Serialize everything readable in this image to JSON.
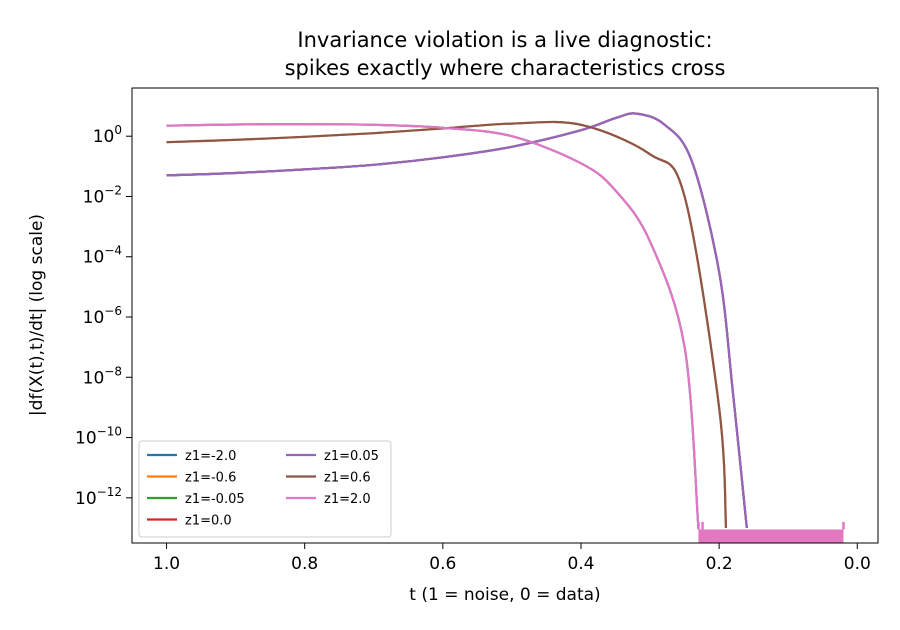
{
  "chart_data": {
    "type": "line",
    "title": "Invariance violation is a live diagnostic:",
    "subtitle": "spikes exactly where characteristics cross",
    "xlabel": "t (1 = noise, 0 = data)",
    "ylabel": "|df(X(t),t)/dt|  (log scale)",
    "xlim": [
      1.05,
      -0.03
    ],
    "ylim_exp": [
      -13.5,
      1.6
    ],
    "yscale": "log",
    "x_inverted": true,
    "grid": false,
    "legend_placement": "lower-left",
    "x_ticks": [
      {
        "value": 1.0,
        "label": "1.0"
      },
      {
        "value": 0.8,
        "label": "0.8"
      },
      {
        "value": 0.6,
        "label": "0.6"
      },
      {
        "value": 0.4,
        "label": "0.4"
      },
      {
        "value": 0.2,
        "label": "0.2"
      },
      {
        "value": 0.0,
        "label": "0.0"
      }
    ],
    "y_ticks": [
      {
        "exp": 0,
        "base": "10",
        "sup": "0"
      },
      {
        "exp": -2,
        "base": "10",
        "sup": "−2"
      },
      {
        "exp": -4,
        "base": "10",
        "sup": "−4"
      },
      {
        "exp": -6,
        "base": "10",
        "sup": "−6"
      },
      {
        "exp": -8,
        "base": "10",
        "sup": "−8"
      },
      {
        "exp": -10,
        "base": "10",
        "sup": "−10"
      },
      {
        "exp": -12,
        "base": "10",
        "sup": "−12"
      }
    ],
    "series": [
      {
        "name": "z1=-2.0",
        "color": "#1f77b4",
        "x": [
          1.0,
          0.9,
          0.8,
          0.7,
          0.6,
          0.5,
          0.4,
          0.35,
          0.3,
          0.25,
          0.23
        ],
        "y_exp": [
          0.35,
          0.39,
          0.4,
          0.38,
          0.28,
          0.0,
          -0.9,
          -1.8,
          -3.5,
          -7.0,
          -13.0
        ]
      },
      {
        "name": "z1=-0.6",
        "color": "#ff7f0e",
        "x": [
          1.0,
          0.9,
          0.8,
          0.7,
          0.6,
          0.5,
          0.4,
          0.3,
          0.25,
          0.2,
          0.19
        ],
        "y_exp": [
          -0.2,
          -0.12,
          -0.02,
          0.1,
          0.26,
          0.42,
          0.38,
          -0.6,
          -2.0,
          -9.0,
          -13.0
        ]
      },
      {
        "name": "z1=-0.05",
        "color": "#2ca02c",
        "x": [
          1.0,
          0.9,
          0.8,
          0.7,
          0.6,
          0.5,
          0.4,
          0.35,
          0.32,
          0.28,
          0.24,
          0.2,
          0.18,
          0.16
        ],
        "y_exp": [
          -1.3,
          -1.22,
          -1.1,
          -0.95,
          -0.7,
          -0.35,
          0.2,
          0.6,
          0.75,
          0.4,
          -0.8,
          -4.5,
          -8.5,
          -13.0
        ]
      },
      {
        "name": "z1=0.0",
        "color": "#d62728",
        "x": [
          1.0,
          0.9,
          0.8,
          0.7,
          0.6,
          0.5,
          0.4,
          0.35,
          0.32,
          0.28,
          0.24,
          0.2,
          0.18,
          0.16
        ],
        "y_exp": [
          -1.3,
          -1.22,
          -1.1,
          -0.95,
          -0.7,
          -0.35,
          0.2,
          0.6,
          0.75,
          0.4,
          -0.8,
          -4.5,
          -8.5,
          -13.0
        ]
      },
      {
        "name": "z1=0.05",
        "color": "#9467bd",
        "x": [
          1.0,
          0.9,
          0.8,
          0.7,
          0.6,
          0.5,
          0.4,
          0.35,
          0.32,
          0.28,
          0.24,
          0.2,
          0.18,
          0.16
        ],
        "y_exp": [
          -1.3,
          -1.22,
          -1.1,
          -0.95,
          -0.7,
          -0.35,
          0.2,
          0.6,
          0.75,
          0.4,
          -0.8,
          -4.5,
          -8.5,
          -13.0
        ]
      },
      {
        "name": "z1=0.6",
        "color": "#8c564b",
        "x": [
          1.0,
          0.9,
          0.8,
          0.7,
          0.6,
          0.5,
          0.4,
          0.3,
          0.25,
          0.2,
          0.19
        ],
        "y_exp": [
          -0.2,
          -0.12,
          -0.02,
          0.1,
          0.26,
          0.42,
          0.38,
          -0.6,
          -2.0,
          -9.0,
          -13.0
        ]
      },
      {
        "name": "z1=2.0",
        "color": "#e377c2",
        "x": [
          1.0,
          0.9,
          0.8,
          0.7,
          0.6,
          0.5,
          0.4,
          0.35,
          0.3,
          0.25,
          0.23
        ],
        "y_exp": [
          0.35,
          0.39,
          0.4,
          0.38,
          0.28,
          0.0,
          -0.9,
          -1.8,
          -3.5,
          -7.0,
          -13.0
        ]
      }
    ],
    "noise_floor": {
      "color": "#e377c2",
      "x_range": [
        0.23,
        0.02
      ],
      "y_exp_low": -13.5,
      "y_exp_high": -13.05,
      "spike_exp": -12.8
    }
  }
}
